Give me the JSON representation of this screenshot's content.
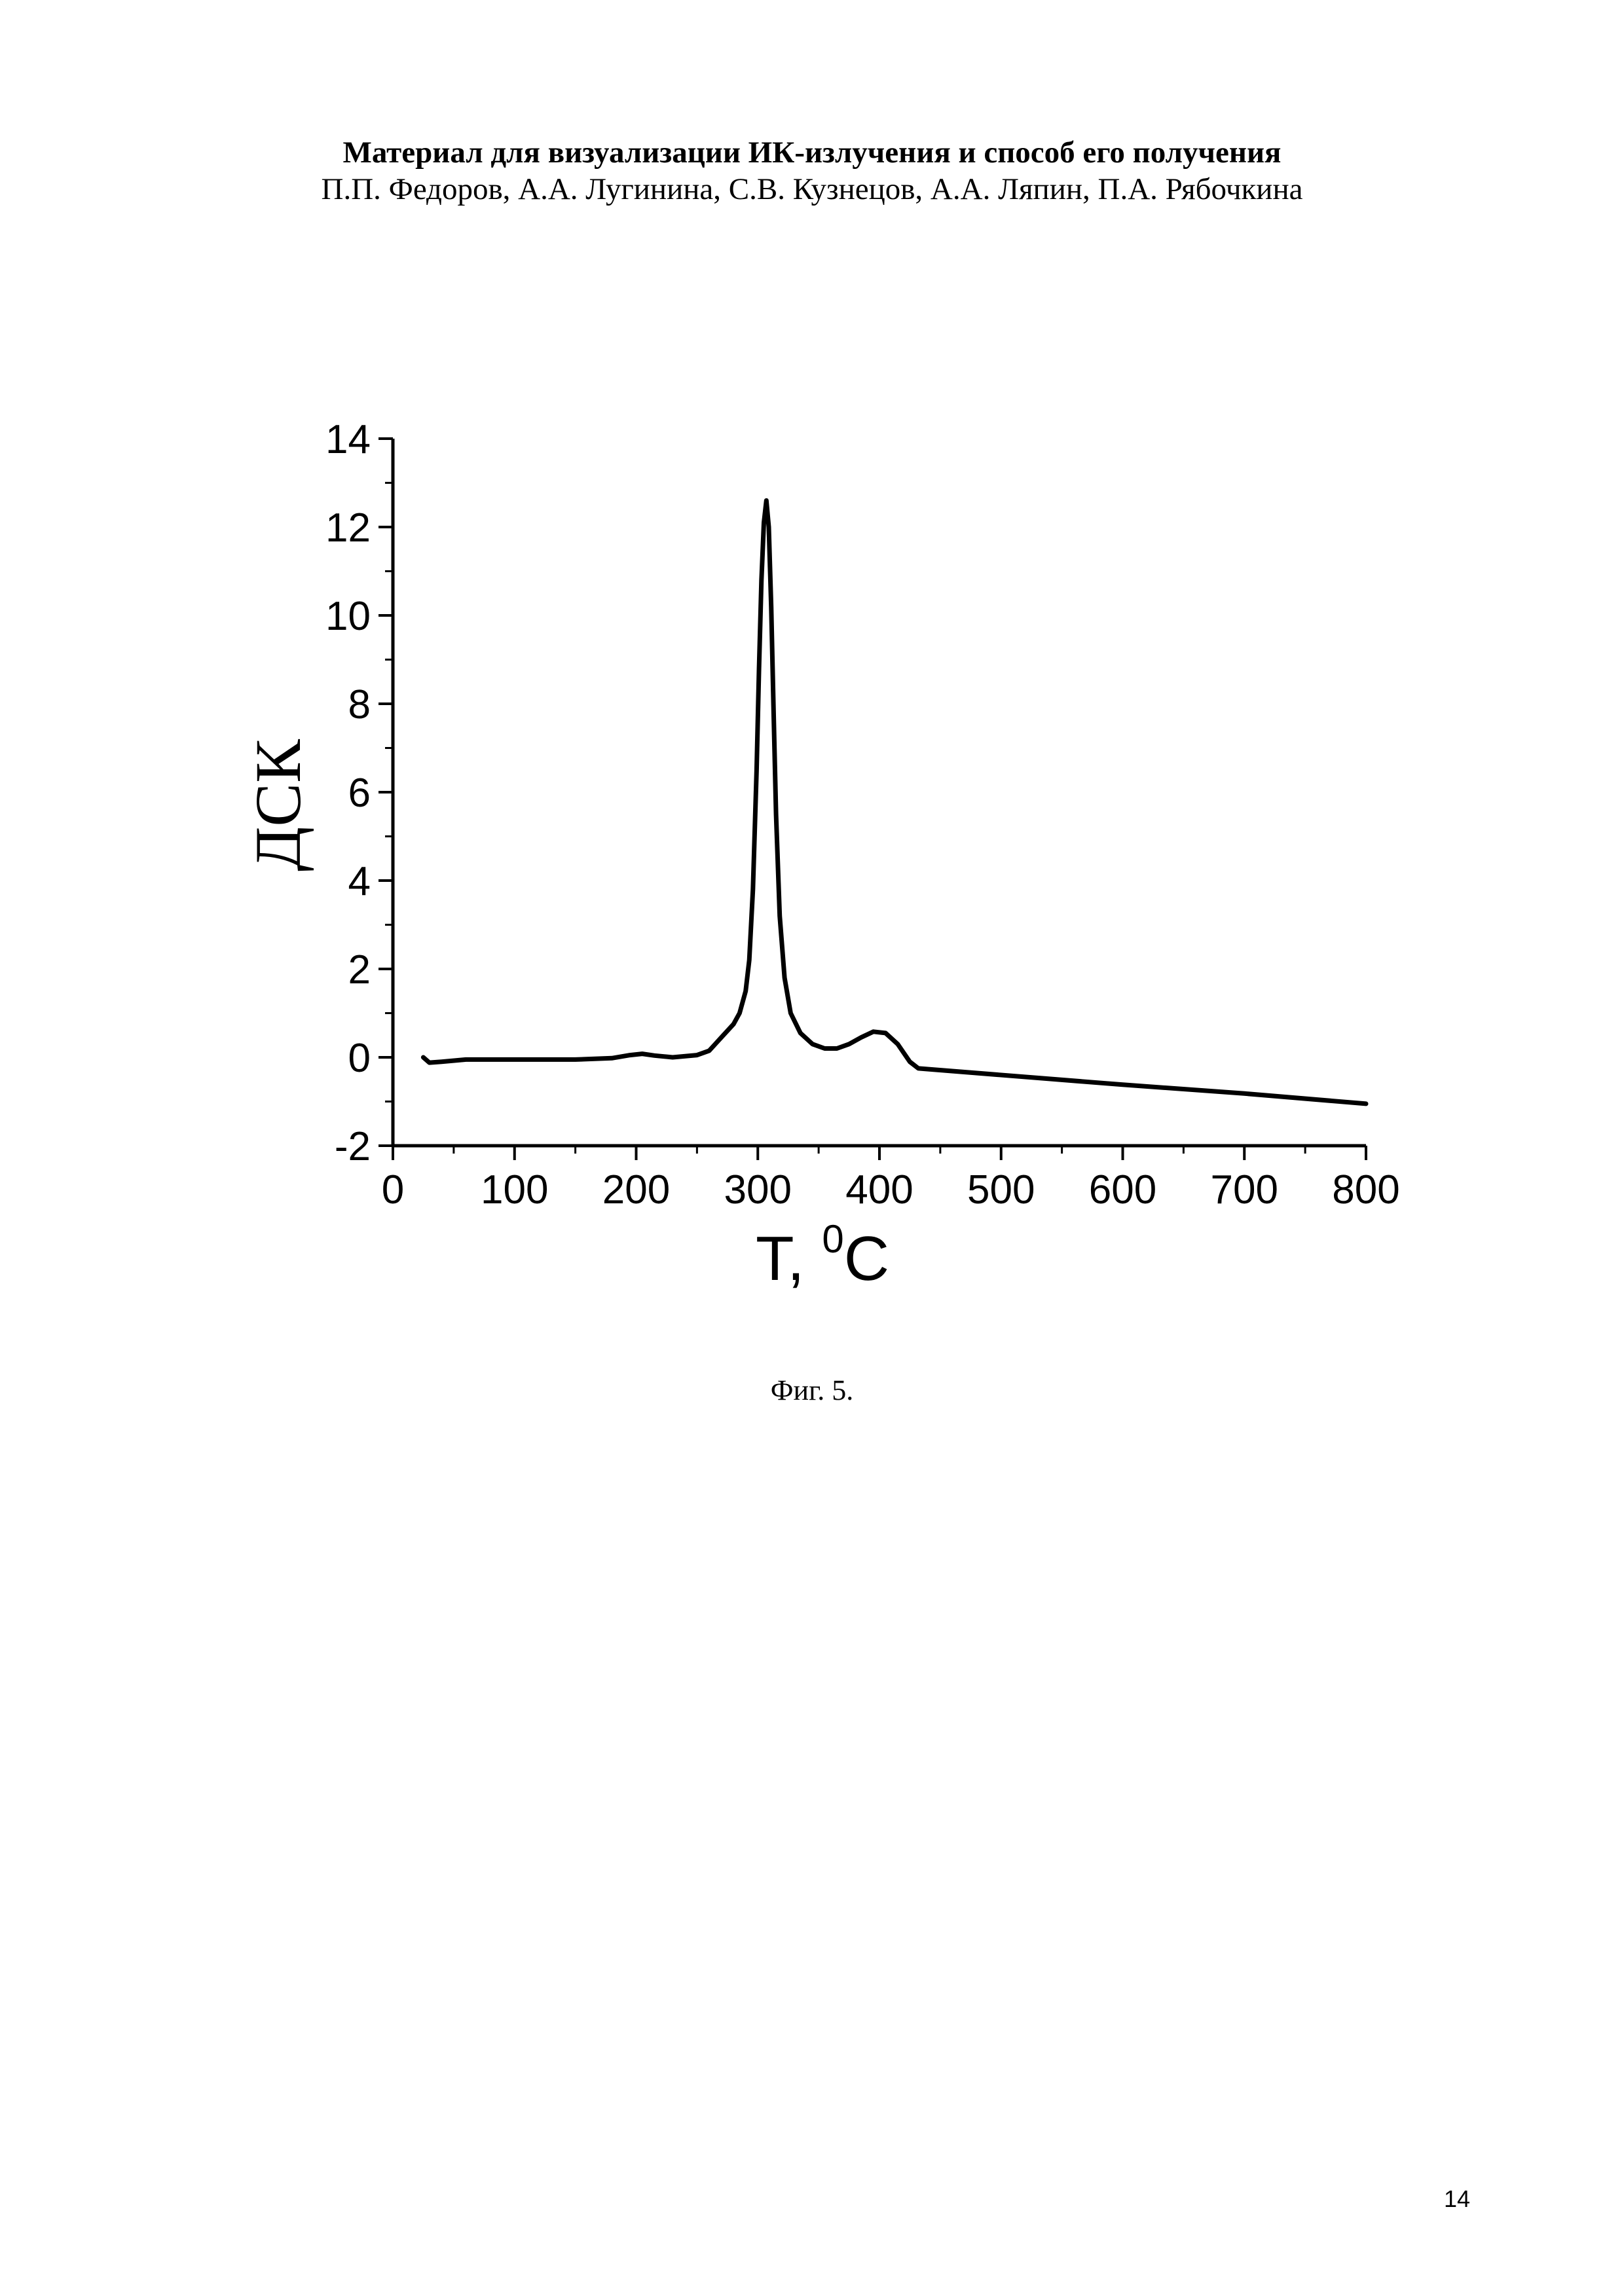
{
  "header": {
    "title": "Материал для визуализации ИК-излучения и способ его получения",
    "authors": "П.П. Федоров, А.А. Лугинина, С.В. Кузнецов, А.А. Ляпин, П.А. Рябочкина"
  },
  "chart_data": {
    "type": "line",
    "title": "",
    "xlabel": "T, ",
    "xlabel_sup": "0",
    "xlabel_unit": "C",
    "ylabel": "ДСК",
    "xlim": [
      0,
      800
    ],
    "ylim": [
      -2,
      14
    ],
    "xticks": [
      0,
      100,
      200,
      300,
      400,
      500,
      600,
      700,
      800
    ],
    "yticks": [
      -2,
      0,
      2,
      4,
      6,
      8,
      10,
      12,
      14
    ],
    "grid": false,
    "line_color": "#000000",
    "series": [
      {
        "x": [
          25,
          30,
          40,
          60,
          100,
          150,
          180,
          195,
          205,
          215,
          230,
          250,
          260,
          265,
          270,
          275,
          280,
          285,
          290,
          293,
          296,
          299,
          301,
          303,
          305,
          307,
          309,
          311,
          313,
          315,
          318,
          322,
          327,
          335,
          345,
          355,
          365,
          375,
          385,
          395,
          405,
          415,
          425,
          432,
          500,
          600,
          700,
          800
        ],
        "y": [
          0.0,
          -0.12,
          -0.1,
          -0.05,
          -0.05,
          -0.05,
          -0.02,
          0.05,
          0.08,
          0.04,
          0.0,
          0.05,
          0.15,
          0.3,
          0.45,
          0.6,
          0.75,
          1.0,
          1.5,
          2.2,
          3.8,
          6.5,
          8.8,
          10.8,
          12.1,
          12.6,
          12.0,
          10.2,
          7.8,
          5.5,
          3.2,
          1.8,
          1.0,
          0.55,
          0.3,
          0.2,
          0.2,
          0.3,
          0.45,
          0.58,
          0.55,
          0.3,
          -0.1,
          -0.25,
          -0.4,
          -0.62,
          -0.82,
          -1.05
        ]
      }
    ]
  },
  "caption": "Фиг. 5.",
  "page_number": "14"
}
